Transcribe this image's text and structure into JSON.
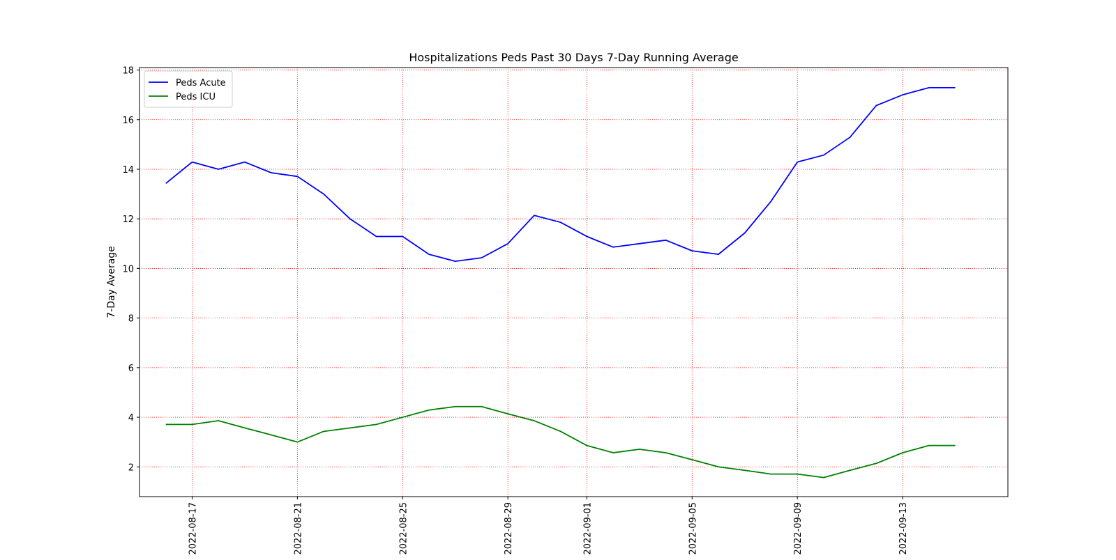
{
  "colors": {
    "grid": "#ff0000",
    "axes": "#000000",
    "background": "#ffffff"
  },
  "chart_data": {
    "type": "line",
    "title": "Hospitalizations Peds Past 30 Days 7-Day Running Average",
    "xlabel": "",
    "ylabel": "7-Day Average",
    "grid": true,
    "legend_position": "top-left",
    "xlim": [
      "2022-08-15",
      "2022-09-17"
    ],
    "ylim": [
      0.8,
      18.1
    ],
    "x_ticks": [
      "2022-08-17",
      "2022-08-21",
      "2022-08-25",
      "2022-08-29",
      "2022-09-01",
      "2022-09-05",
      "2022-09-09",
      "2022-09-13"
    ],
    "y_ticks": [
      2,
      4,
      6,
      8,
      10,
      12,
      14,
      16,
      18
    ],
    "x": [
      "2022-08-16",
      "2022-08-17",
      "2022-08-18",
      "2022-08-19",
      "2022-08-20",
      "2022-08-21",
      "2022-08-22",
      "2022-08-23",
      "2022-08-24",
      "2022-08-25",
      "2022-08-26",
      "2022-08-27",
      "2022-08-28",
      "2022-08-29",
      "2022-08-30",
      "2022-08-31",
      "2022-09-01",
      "2022-09-02",
      "2022-09-03",
      "2022-09-04",
      "2022-09-05",
      "2022-09-06",
      "2022-09-07",
      "2022-09-08",
      "2022-09-09",
      "2022-09-10",
      "2022-09-11",
      "2022-09-12",
      "2022-09-13",
      "2022-09-14",
      "2022-09-15"
    ],
    "series": [
      {
        "name": "Peds Acute",
        "color": "#0000ff",
        "values": [
          13.43,
          14.29,
          14.0,
          14.29,
          13.86,
          13.71,
          13.0,
          12.0,
          11.29,
          11.29,
          10.57,
          10.29,
          10.43,
          11.0,
          12.14,
          11.86,
          11.29,
          10.86,
          11.0,
          11.14,
          10.71,
          10.57,
          11.43,
          12.71,
          14.29,
          14.57,
          15.29,
          16.57,
          17.0,
          17.29,
          17.29
        ]
      },
      {
        "name": "Peds ICU",
        "color": "#008000",
        "values": [
          3.71,
          3.71,
          3.86,
          3.57,
          3.29,
          3.0,
          3.43,
          3.57,
          3.71,
          4.0,
          4.29,
          4.43,
          4.43,
          4.14,
          3.86,
          3.43,
          2.86,
          2.57,
          2.71,
          2.57,
          2.29,
          2.0,
          1.86,
          1.71,
          1.71,
          1.57,
          1.86,
          2.14,
          2.57,
          2.86,
          2.86
        ]
      }
    ]
  }
}
